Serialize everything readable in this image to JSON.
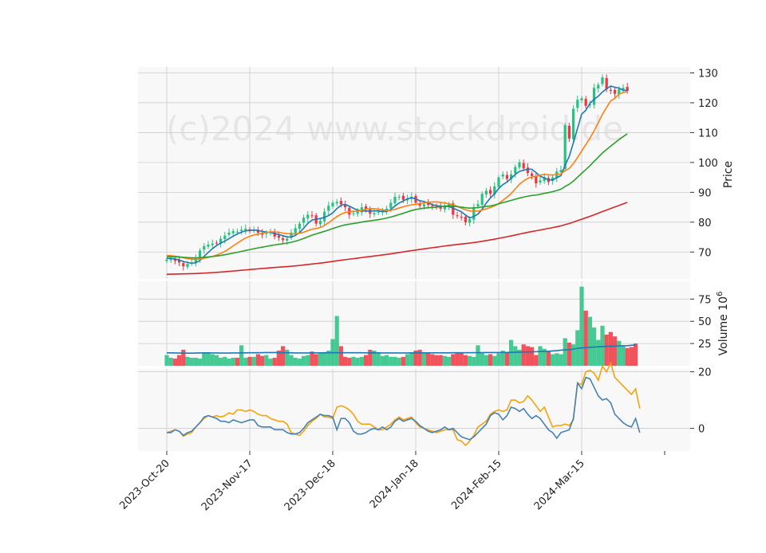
{
  "chart_data": {
    "type": "candlestick",
    "watermark": "(c)2024 www.stockdroid.de",
    "x_tick_labels": [
      "2023-Oct-20",
      "2023-Nov-17",
      "2023-Dec-18",
      "2024-Jan-18",
      "2024-Feb-15",
      "2024-Mar-15"
    ],
    "x_tick_index": [
      0,
      20,
      40,
      60,
      80,
      100
    ],
    "colors": {
      "up": "#26c281",
      "down": "#f0353f",
      "panel_bg": "#f8f8f8",
      "grid": "#cccccc",
      "ma_fast": "#1f77b4",
      "ma_mid": "#ff7f0e",
      "ma_slow": "#2ca02c",
      "ma_long": "#d62728",
      "vol_avg": "#1f77b4",
      "osc_a": "#4682b4",
      "osc_b": "#f5a30a"
    },
    "price_panel": {
      "ylabel": "Price",
      "yticks": [
        70,
        80,
        90,
        100,
        110,
        120,
        130
      ],
      "ylim": [
        61,
        132
      ]
    },
    "volume_panel": {
      "ylabel": "Volume  10",
      "ylabel_exp": "6",
      "yticks": [
        25,
        50,
        75
      ],
      "ylim": [
        0,
        95
      ]
    },
    "osc_panel": {
      "yticks": [
        0,
        20
      ],
      "ylim": [
        -8,
        21
      ]
    },
    "close_series": [
      67.5,
      67.8,
      67.0,
      66.5,
      65.2,
      66.0,
      66.5,
      67.8,
      70.5,
      72.0,
      72.5,
      72.8,
      73.0,
      74.5,
      75.5,
      76.5,
      77.0,
      76.8,
      77.5,
      77.8,
      77.0,
      77.5,
      76.5,
      75.8,
      76.5,
      76.8,
      75.2,
      74.8,
      74.0,
      74.5,
      76.5,
      78.0,
      79.5,
      81.5,
      82.5,
      82.0,
      79.5,
      80.5,
      83.5,
      85.5,
      86.5,
      86.8,
      86.0,
      85.0,
      82.5,
      83.0,
      83.5,
      85.0,
      84.5,
      82.8,
      83.0,
      83.5,
      84.0,
      84.5,
      86.5,
      88.5,
      88.5,
      87.5,
      88.0,
      88.5,
      86.5,
      85.5,
      86.0,
      85.8,
      85.5,
      85.0,
      84.5,
      85.5,
      86.0,
      82.5,
      82.0,
      81.5,
      80.0,
      81.0,
      85.0,
      86.0,
      89.5,
      90.5,
      89.5,
      92.0,
      95.0,
      96.0,
      94.5,
      96.0,
      98.5,
      100.0,
      98.0,
      96.5,
      95.5,
      93.0,
      94.0,
      95.0,
      93.5,
      95.0,
      97.0,
      97.5,
      112.5,
      108.0,
      118.0,
      121.0,
      121.5,
      119.0,
      119.5,
      125.0,
      126.0,
      128.5,
      124.5,
      124.0,
      123.0,
      124.5,
      125.0,
      124.0
    ],
    "volume_series": [
      12,
      9,
      8,
      12,
      18,
      10,
      9,
      9,
      8,
      15,
      14,
      13,
      12,
      9,
      10,
      8,
      9,
      9,
      23,
      9,
      10,
      10,
      13,
      11,
      12,
      8,
      9,
      17,
      22,
      18,
      12,
      9,
      8,
      11,
      12,
      16,
      13,
      15,
      14,
      17,
      30,
      56,
      22,
      10,
      9,
      10,
      9,
      10,
      12,
      18,
      17,
      15,
      11,
      12,
      10,
      10,
      9,
      10,
      13,
      15,
      17,
      18,
      15,
      14,
      13,
      12,
      12,
      11,
      10,
      13,
      15,
      14,
      12,
      11,
      10,
      23,
      14,
      12,
      13,
      11,
      14,
      17,
      15,
      29,
      22,
      18,
      24,
      22,
      21,
      12,
      22,
      19,
      16,
      13,
      14,
      13,
      31,
      26,
      24,
      40,
      89,
      62,
      55,
      43,
      29,
      45,
      35,
      38,
      33,
      28,
      22,
      20,
      21,
      25
    ],
    "volume_avg_series": [
      14.5,
      14.5,
      14.4,
      14.3,
      14.3,
      14.2,
      14.2,
      14.3,
      14.4,
      14.5,
      14.5,
      14.4,
      14.4,
      14.3,
      14.3,
      14.3,
      14.4,
      14.4,
      14.5,
      14.5,
      14.6,
      14.6,
      14.6,
      14.7,
      14.8,
      14.8,
      14.8,
      14.7,
      14.7,
      14.6,
      14.5,
      14.4,
      14.4,
      14.4,
      14.4,
      14.4,
      14.5,
      14.5,
      14.6,
      14.6,
      14.6,
      14.6,
      14.6,
      14.6,
      14.6,
      14.6,
      14.6,
      14.6,
      14.5,
      14.5,
      14.5,
      14.5,
      14.4,
      14.4,
      14.4,
      14.4,
      14.4,
      14.4,
      14.4,
      14.5,
      14.5,
      14.5,
      14.5,
      14.5,
      14.5,
      14.5,
      14.5,
      14.5,
      14.5,
      14.6,
      14.6,
      14.6,
      14.6,
      14.6,
      14.7,
      14.7,
      14.7,
      14.8,
      14.8,
      14.8,
      14.8,
      14.9,
      15.0,
      15.0,
      15.2,
      15.3,
      15.4,
      15.5,
      15.6,
      15.8,
      16.0,
      16.1,
      16.3,
      16.6,
      17.0,
      17.5,
      17.8,
      18.0,
      18.7,
      19.6,
      20.0,
      20.5,
      20.8,
      21.0,
      21.3,
      21.6,
      21.9,
      22.0,
      22.2,
      22.3,
      22.5,
      22.6,
      23.0,
      23.5
    ],
    "osc_series_a": [
      -1.5,
      -1.5,
      -0.5,
      -1.0,
      -2.5,
      -1.5,
      -1.0,
      0.5,
      2.0,
      4.0,
      4.5,
      4.0,
      3.5,
      2.5,
      2.5,
      2.0,
      3.0,
      2.5,
      2.0,
      2.5,
      3.0,
      3.0,
      1.0,
      0.5,
      0.5,
      0.5,
      -0.5,
      -0.5,
      -0.5,
      -1.5,
      -2.0,
      -2.0,
      -1.5,
      0.0,
      2.0,
      3.0,
      4.0,
      5.0,
      4.5,
      4.5,
      4.0,
      -0.5,
      3.5,
      3.5,
      2.0,
      -1.0,
      -2.0,
      -2.0,
      -1.5,
      -0.5,
      0.0,
      -0.5,
      0.5,
      -0.5,
      0.5,
      2.5,
      3.5,
      2.5,
      3.0,
      3.5,
      2.5,
      1.0,
      0.0,
      -1.0,
      -1.5,
      -1.0,
      -0.5,
      0.5,
      -0.5,
      0.0,
      -1.5,
      -3.0,
      -3.5,
      -4.0,
      -3.0,
      -1.5,
      0.0,
      1.5,
      4.5,
      5.5,
      5.0,
      3.0,
      4.5,
      7.5,
      7.0,
      6.0,
      7.0,
      5.0,
      3.5,
      4.5,
      3.5,
      1.5,
      -0.5,
      -1.5,
      -3.5,
      -1.5,
      -1.0,
      -0.5,
      3.5,
      16.0,
      14.0,
      18.0,
      17.5,
      14.5,
      11.5,
      10.0,
      10.5,
      9.0,
      5.0,
      3.5,
      2.0,
      1.0,
      0.5,
      3.5,
      -1.5
    ],
    "osc_series_b": [
      -1.5,
      -1.0,
      -0.5,
      -1.0,
      -2.8,
      -2.0,
      -1.5,
      0.5,
      2.0,
      3.5,
      4.5,
      4.0,
      4.5,
      4.0,
      4.5,
      5.5,
      5.0,
      6.5,
      6.5,
      6.0,
      6.5,
      6.0,
      5.0,
      4.5,
      4.5,
      3.5,
      3.0,
      2.5,
      2.5,
      1.5,
      -1.5,
      -2.0,
      -2.5,
      -1.0,
      1.0,
      2.5,
      3.5,
      5.0,
      4.0,
      4.0,
      3.5,
      7.5,
      8.0,
      7.5,
      6.5,
      5.0,
      2.5,
      1.5,
      1.5,
      1.5,
      0.5,
      -0.5,
      -0.5,
      0.5,
      1.5,
      3.0,
      4.0,
      3.0,
      3.5,
      4.0,
      2.0,
      0.5,
      0.0,
      -0.5,
      -1.0,
      -1.5,
      -1.0,
      -0.5,
      -0.5,
      -0.5,
      -4.0,
      -4.5,
      -6.0,
      -4.5,
      -2.5,
      0.5,
      1.5,
      2.5,
      5.0,
      6.0,
      6.5,
      6.0,
      6.5,
      10.0,
      10.0,
      9.0,
      9.5,
      11.5,
      10.0,
      8.0,
      6.0,
      7.5,
      4.0,
      0.5,
      1.0,
      1.0,
      1.5,
      1.0,
      3.0,
      16.0,
      15.5,
      20.0,
      20.5,
      19.5,
      17.0,
      22.0,
      20.0,
      23.0,
      18.0,
      16.5,
      15.0,
      13.5,
      12.0,
      14.0,
      7.0
    ]
  }
}
